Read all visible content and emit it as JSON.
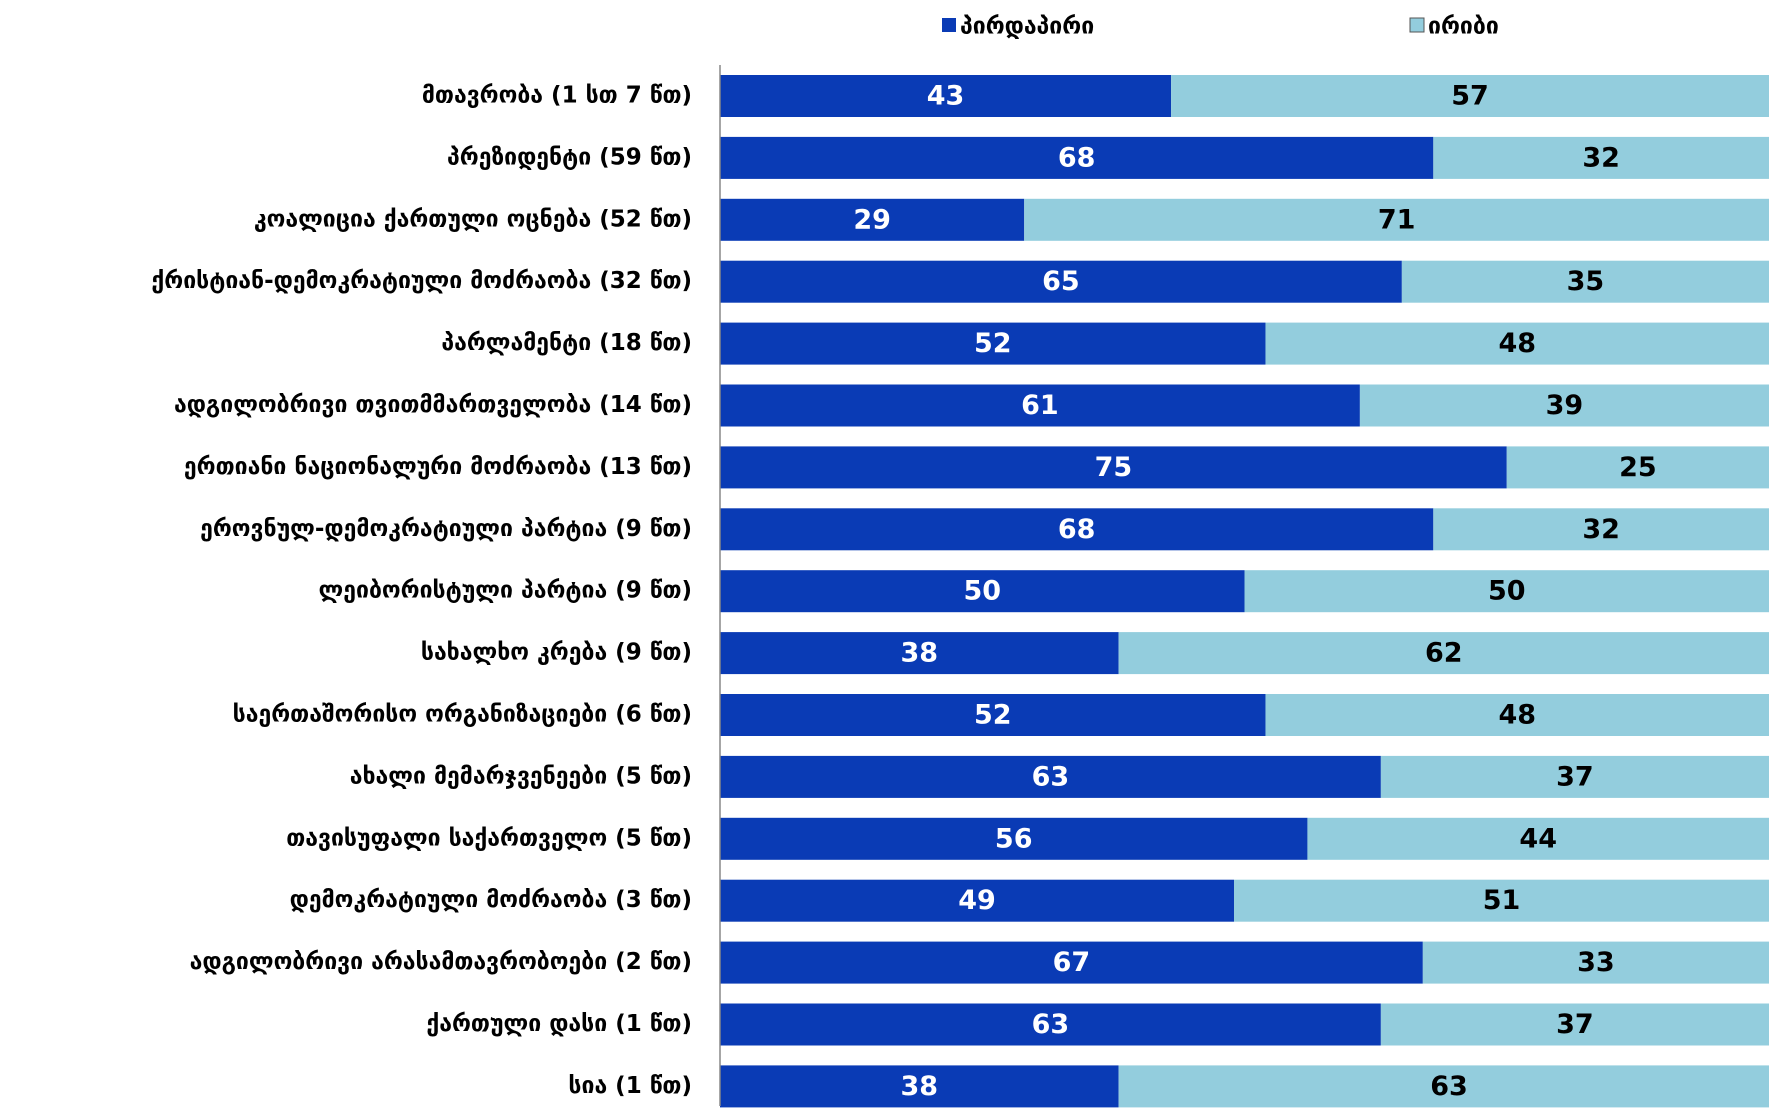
{
  "chart_data": {
    "type": "bar",
    "orientation": "horizontal",
    "stacked": true,
    "categories": [
      "მთავრობა (1 სთ 7 წთ)",
      "პრეზიდენტი (59 წთ)",
      "კოალიცია ქართული ოცნება (52 წთ)",
      "ქრისტიან-დემოკრატიული მოძრაობა (32 წთ)",
      "პარლამენტი (18 წთ)",
      "ადგილობრივი თვითმმართველობა (14 წთ)",
      "ერთიანი ნაციონალური მოძრაობა (13 წთ)",
      "ეროვნულ-დემოკრატიული პარტია (9 წთ)",
      "ლეიბორისტული პარტია (9 წთ)",
      "სახალხო კრება (9 წთ)",
      "საერთაშორისო ორგანიზაციები (6 წთ)",
      "ახალი მემარჯვენეები (5 წთ)",
      "თავისუფალი საქართველო (5 წთ)",
      "დემოკრატიული მოძრაობა (3 წთ)",
      "ადგილობრივი არასამთავრობოები (2 წთ)",
      "ქართული დასი (1 წთ)",
      "სია (1 წთ)"
    ],
    "series": [
      {
        "name": "პირდაპირი",
        "color": "#0a3bb5",
        "label_color": "#ffffff",
        "values": [
          43,
          68,
          29,
          65,
          52,
          61,
          75,
          68,
          50,
          38,
          52,
          63,
          56,
          49,
          67,
          63,
          38
        ]
      },
      {
        "name": "ირიბი",
        "color": "#93cddd",
        "label_color": "#000000",
        "values": [
          57,
          32,
          71,
          35,
          48,
          39,
          25,
          32,
          50,
          62,
          48,
          37,
          44,
          51,
          33,
          37,
          63
        ]
      }
    ],
    "xlim": [
      0,
      100
    ],
    "legend": "top"
  }
}
